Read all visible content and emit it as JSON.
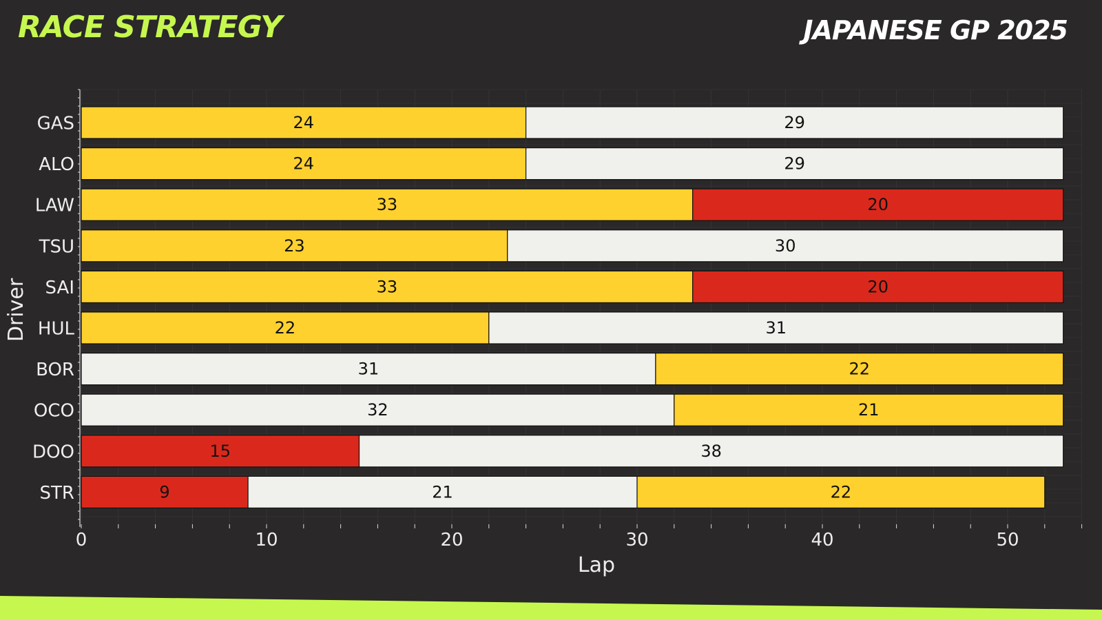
{
  "header": {
    "title": "RACE STRATEGY",
    "event": "JAPANESE GP 2025"
  },
  "colors": {
    "background": "#2a2828",
    "accent": "#c6f74f",
    "compounds": {
      "SOFT": "#da291c",
      "MEDIUM": "#ffd12e",
      "HARD": "#f0f0ec"
    }
  },
  "chart_data": {
    "type": "bar",
    "orientation": "horizontal",
    "stacked": true,
    "xlabel": "Lap",
    "ylabel": "Driver",
    "xlim": [
      0,
      54
    ],
    "xticks": [
      0,
      10,
      20,
      30,
      40,
      50
    ],
    "drivers": [
      {
        "name": "GAS",
        "stints": [
          {
            "compound": "MEDIUM",
            "laps": 24
          },
          {
            "compound": "HARD",
            "laps": 29
          }
        ]
      },
      {
        "name": "ALO",
        "stints": [
          {
            "compound": "MEDIUM",
            "laps": 24
          },
          {
            "compound": "HARD",
            "laps": 29
          }
        ]
      },
      {
        "name": "LAW",
        "stints": [
          {
            "compound": "MEDIUM",
            "laps": 33
          },
          {
            "compound": "SOFT",
            "laps": 20
          }
        ]
      },
      {
        "name": "TSU",
        "stints": [
          {
            "compound": "MEDIUM",
            "laps": 23
          },
          {
            "compound": "HARD",
            "laps": 30
          }
        ]
      },
      {
        "name": "SAI",
        "stints": [
          {
            "compound": "MEDIUM",
            "laps": 33
          },
          {
            "compound": "SOFT",
            "laps": 20
          }
        ]
      },
      {
        "name": "HUL",
        "stints": [
          {
            "compound": "MEDIUM",
            "laps": 22
          },
          {
            "compound": "HARD",
            "laps": 31
          }
        ]
      },
      {
        "name": "BOR",
        "stints": [
          {
            "compound": "HARD",
            "laps": 31
          },
          {
            "compound": "MEDIUM",
            "laps": 22
          }
        ]
      },
      {
        "name": "OCO",
        "stints": [
          {
            "compound": "HARD",
            "laps": 32
          },
          {
            "compound": "MEDIUM",
            "laps": 21
          }
        ]
      },
      {
        "name": "DOO",
        "stints": [
          {
            "compound": "SOFT",
            "laps": 15
          },
          {
            "compound": "HARD",
            "laps": 38
          }
        ]
      },
      {
        "name": "STR",
        "stints": [
          {
            "compound": "SOFT",
            "laps": 9
          },
          {
            "compound": "HARD",
            "laps": 21
          },
          {
            "compound": "MEDIUM",
            "laps": 22
          }
        ]
      }
    ]
  }
}
